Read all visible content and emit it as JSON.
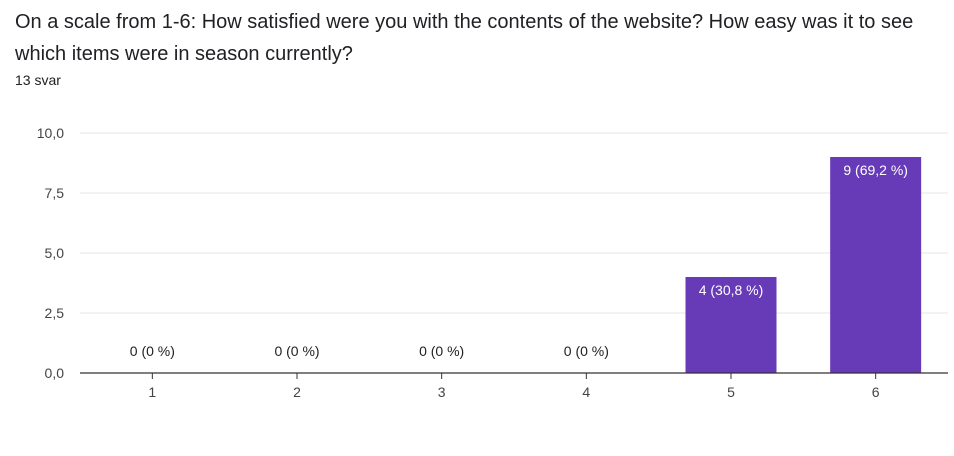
{
  "question": "On a scale from 1-6: How satisfied were you with the contents of the website? How easy was it to see which items were in season currently?",
  "response_count": "13 svar",
  "colors": {
    "bar": "#673ab7",
    "grid": "#e6e6e6",
    "axis": "#333333"
  },
  "chart_data": {
    "type": "bar",
    "categories": [
      "1",
      "2",
      "3",
      "4",
      "5",
      "6"
    ],
    "values": [
      0,
      0,
      0,
      0,
      4,
      9
    ],
    "data_labels": [
      "0 (0 %)",
      "0 (0 %)",
      "0 (0 %)",
      "0 (0 %)",
      "4 (30,8 %)",
      "9 (69,2 %)"
    ],
    "ylim": [
      0,
      10
    ],
    "yticks": [
      "0,0",
      "2,5",
      "5,0",
      "7,5",
      "10,0"
    ],
    "ytick_values": [
      0,
      2.5,
      5,
      7.5,
      10
    ],
    "grid": true,
    "legend": "none"
  }
}
